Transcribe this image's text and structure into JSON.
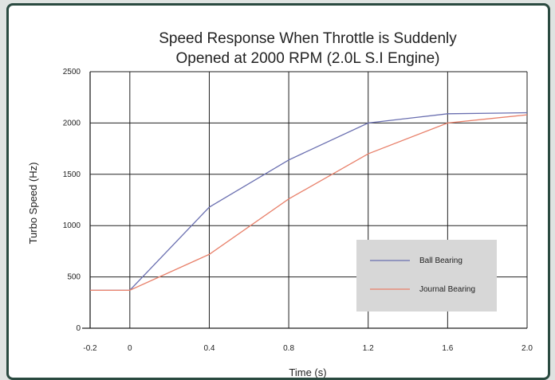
{
  "chart_data": {
    "type": "line",
    "title_lines": [
      "Speed Response When Throttle is Suddenly",
      "Opened at 2000 RPM (2.0L S.I Engine)"
    ],
    "xlabel": "Time (s)",
    "ylabel": "Turbo Speed (Hz)",
    "x_ticks": [
      "-0.2",
      "0",
      "0.4",
      "0.8",
      "1.2",
      "1.6",
      "2.0"
    ],
    "y_ticks": [
      "0",
      "500",
      "1000",
      "1500",
      "2000",
      "2500"
    ],
    "xlim": [
      -0.2,
      2.0
    ],
    "ylim": [
      0,
      2500
    ],
    "grid": true,
    "legend_position": "lower-right",
    "series": [
      {
        "name": "Ball Bearing",
        "color": "#6a6fb0",
        "x": [
          -0.2,
          0,
          0.4,
          0.8,
          1.2,
          1.6,
          2.0
        ],
        "y": [
          370,
          370,
          1180,
          1640,
          2000,
          2090,
          2100
        ]
      },
      {
        "name": "Journal Bearing",
        "color": "#e8806a",
        "x": [
          -0.2,
          0,
          0.4,
          0.8,
          1.2,
          1.6,
          2.0
        ],
        "y": [
          370,
          370,
          720,
          1260,
          1700,
          2000,
          2080
        ]
      }
    ]
  }
}
